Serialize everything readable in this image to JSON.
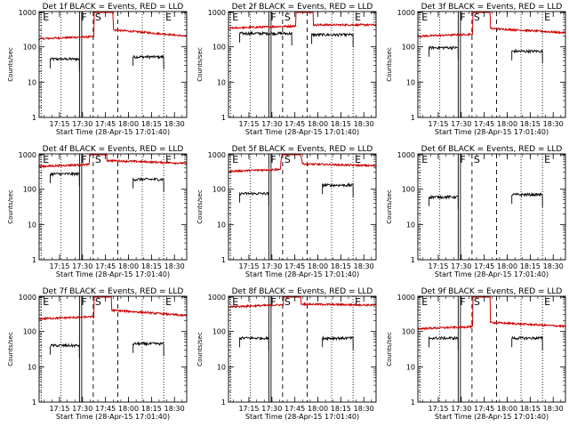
{
  "chart_data": {
    "type": "line",
    "panels": [
      {
        "title": "Det 1f BLACK = Events, RED = LLD",
        "ylabel": "Counts/sec",
        "xlabel": "Start Time (28-Apr-15 17:01:40)",
        "black": {
          "segments": [
            {
              "from": "17:09",
              "to": "17:28",
              "level": 45
            },
            {
              "from": "18:03",
              "to": "18:23",
              "level": 52
            }
          ]
        },
        "red": {
          "base": 170,
          "peak_level": 20000,
          "peak_from": "17:39",
          "peak_to": "17:48",
          "after": 300,
          "tail": 200
        }
      },
      {
        "title": "Det 2f BLACK = Events, RED = LLD",
        "ylabel": "Counts/sec",
        "xlabel": "Start Time (28-Apr-15 17:01:40)",
        "black": {
          "segments": [
            {
              "from": "17:09",
              "to": "17:43",
              "level": 240
            },
            {
              "from": "17:56",
              "to": "18:23",
              "level": 220
            }
          ]
        },
        "red": {
          "base": 340,
          "peak_level": 20000,
          "peak_from": "17:47",
          "peak_to": "17:55",
          "after": 420,
          "tail": 420
        }
      },
      {
        "title": "Det 3f BLACK = Events, RED = LLD",
        "ylabel": "Counts/sec",
        "xlabel": "Start Time (28-Apr-15 17:01:40)",
        "black": {
          "segments": [
            {
              "from": "17:09",
              "to": "17:28",
              "level": 95
            },
            {
              "from": "18:03",
              "to": "18:23",
              "level": 75
            }
          ]
        },
        "red": {
          "base": 200,
          "peak_level": 20000,
          "peak_from": "17:39",
          "peak_to": "17:47",
          "after": 330,
          "tail": 250
        }
      },
      {
        "title": "Det 4f BLACK = Events, RED = LLD",
        "ylabel": "Counts/sec",
        "xlabel": "Start Time (28-Apr-15 17:01:40)",
        "black": {
          "segments": [
            {
              "from": "17:09",
              "to": "17:28",
              "level": 270
            },
            {
              "from": "18:03",
              "to": "18:23",
              "level": 190
            }
          ]
        },
        "red": {
          "base": 440,
          "peak_level": 20000,
          "peak_from": "17:36",
          "peak_to": "17:44",
          "after": 650,
          "tail": 540
        }
      },
      {
        "title": "Det 5f BLACK = Events, RED = LLD",
        "ylabel": "Counts/sec",
        "xlabel": "Start Time (28-Apr-15 17:01:40)",
        "black": {
          "segments": [
            {
              "from": "17:09",
              "to": "17:28",
              "level": 75
            },
            {
              "from": "18:03",
              "to": "18:23",
              "level": 130
            }
          ]
        },
        "red": {
          "base": 320,
          "peak_level": 1200,
          "peak_from": "17:37",
          "peak_to": "17:48",
          "after": 520,
          "tail": 460
        }
      },
      {
        "title": "Det 6f BLACK = Events, RED = LLD",
        "ylabel": "Counts/sec",
        "xlabel": "Start Time (28-Apr-15 17:01:40)",
        "black": {
          "segments": [
            {
              "from": "17:09",
              "to": "17:28",
              "level": 60
            },
            {
              "from": "18:03",
              "to": "18:23",
              "level": 70
            }
          ]
        },
        "red": null
      },
      {
        "title": "Det 7f BLACK = Events, RED = LLD",
        "ylabel": "Counts/sec",
        "xlabel": "Start Time (28-Apr-15 17:01:40)",
        "black": {
          "segments": [
            {
              "from": "17:09",
              "to": "17:28",
              "level": 40
            },
            {
              "from": "18:03",
              "to": "18:23",
              "level": 45
            }
          ]
        },
        "red": {
          "base": 230,
          "peak_level": 20000,
          "peak_from": "17:39",
          "peak_to": "17:47",
          "after": 400,
          "tail": 280
        }
      },
      {
        "title": "Det 8f BLACK = Events, RED = LLD",
        "ylabel": "Counts/sec",
        "xlabel": "Start Time (28-Apr-15 17:01:40)",
        "black": {
          "segments": [
            {
              "from": "17:09",
              "to": "17:28",
              "level": 65
            },
            {
              "from": "18:03",
              "to": "18:23",
              "level": 65
            }
          ]
        },
        "red": {
          "base": 500,
          "peak_level": 20000,
          "peak_from": "17:39",
          "peak_to": "17:47",
          "after": 600,
          "tail": 560
        }
      },
      {
        "title": "Det 9f BLACK = Events, RED = LLD",
        "ylabel": "Counts/sec",
        "xlabel": "Start Time (28-Apr-15 17:01:40)",
        "black": {
          "segments": [
            {
              "from": "17:09",
              "to": "17:28",
              "level": 65
            },
            {
              "from": "18:03",
              "to": "18:23",
              "level": 65
            }
          ]
        },
        "red": {
          "base": 120,
          "peak_level": 20000,
          "peak_from": "17:39",
          "peak_to": "17:47",
          "after": 180,
          "tail": 140
        }
      }
    ],
    "xlim": [
      "17:01:40",
      "18:38"
    ],
    "ylim": [
      1,
      1000
    ],
    "yscale": "log",
    "xticks": [
      "17:15",
      "17:30",
      "17:45",
      "18:00",
      "18:15",
      "18:30"
    ],
    "yticks": [
      "1",
      "10",
      "100",
      "1000"
    ],
    "markers": [
      {
        "label": "E",
        "time": "17:03",
        "style": "dotted"
      },
      {
        "label": "F",
        "time": "17:28",
        "style": "solid"
      },
      {
        "label": "S",
        "time": "17:37",
        "style": "dashed"
      },
      {
        "label": "",
        "time": "17:53",
        "style": "dashed"
      },
      {
        "label": "E",
        "time": "18:23",
        "style": "dotted"
      }
    ],
    "extra_dotted_times": [
      "17:16",
      "18:09"
    ],
    "colors": {
      "events": "#000000",
      "lld": "#cc0000"
    }
  }
}
